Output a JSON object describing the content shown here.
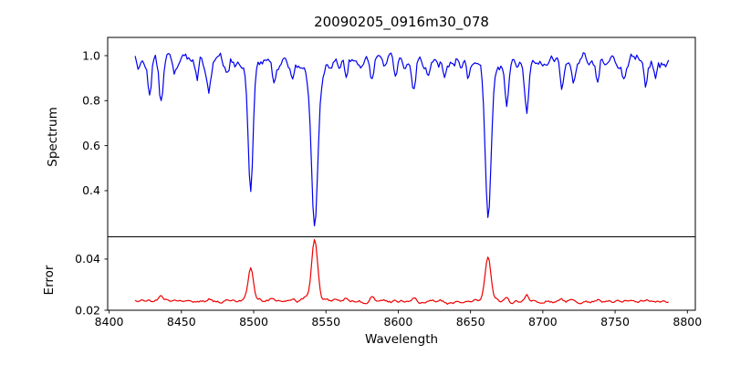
{
  "window": {
    "background": "#ffffff"
  },
  "chart_data": {
    "type": "line",
    "title": "20090205_0916m30_078",
    "xlabel": "Wavelength",
    "grid": false,
    "legend": "none",
    "x_data_range": [
      8418,
      8787
    ],
    "x_step": 1.0,
    "xlim": [
      8399,
      8805.5
    ],
    "xticks": [
      8400,
      8450,
      8500,
      8550,
      8600,
      8650,
      8700,
      8750,
      8800
    ],
    "xtick_labels": [
      "8400",
      "8450",
      "8500",
      "8550",
      "8600",
      "8650",
      "8700",
      "8750",
      "8800"
    ],
    "noise_seed": 20090205,
    "panels": [
      {
        "name": "spectrum",
        "ylabel": "Spectrum",
        "line_color": "#0000ee",
        "ylim": [
          0.195,
          1.081
        ],
        "yticks": [
          0.4,
          0.6,
          0.8,
          1.0
        ],
        "ytick_labels": [
          "0.4",
          "0.6",
          "0.8",
          "1.0"
        ],
        "continuum": 0.975,
        "noise_amplitude": 0.05,
        "absorption_lines": [
          {
            "center": 8428.0,
            "depth": 0.15,
            "sigma": 1.2
          },
          {
            "center": 8436.0,
            "depth": 0.21,
            "sigma": 1.3
          },
          {
            "center": 8445.0,
            "depth": 0.06,
            "sigma": 1.0
          },
          {
            "center": 8461.0,
            "depth": 0.07,
            "sigma": 1.0
          },
          {
            "center": 8469.0,
            "depth": 0.15,
            "sigma": 1.3
          },
          {
            "center": 8482.0,
            "depth": 0.06,
            "sigma": 1.0
          },
          {
            "center": 8498.0,
            "depth": 0.52,
            "sigma": 1.7
          },
          {
            "center": 8498.0,
            "depth": 0.045,
            "sigma": 6.0
          },
          {
            "center": 8514.0,
            "depth": 0.12,
            "sigma": 1.2
          },
          {
            "center": 8527.0,
            "depth": 0.07,
            "sigma": 1.0
          },
          {
            "center": 8542.1,
            "depth": 0.68,
            "sigma": 2.1
          },
          {
            "center": 8542.1,
            "depth": 0.06,
            "sigma": 8.0
          },
          {
            "center": 8564.0,
            "depth": 0.1,
            "sigma": 1.1
          },
          {
            "center": 8582.0,
            "depth": 0.12,
            "sigma": 1.2
          },
          {
            "center": 8598.0,
            "depth": 0.05,
            "sigma": 1.0
          },
          {
            "center": 8611.0,
            "depth": 0.11,
            "sigma": 1.2
          },
          {
            "center": 8621.0,
            "depth": 0.06,
            "sigma": 1.0
          },
          {
            "center": 8632.0,
            "depth": 0.05,
            "sigma": 1.0
          },
          {
            "center": 8648.0,
            "depth": 0.06,
            "sigma": 1.0
          },
          {
            "center": 8662.1,
            "depth": 0.62,
            "sigma": 2.0
          },
          {
            "center": 8662.1,
            "depth": 0.05,
            "sigma": 7.0
          },
          {
            "center": 8675.0,
            "depth": 0.16,
            "sigma": 1.2
          },
          {
            "center": 8689.0,
            "depth": 0.23,
            "sigma": 1.3
          },
          {
            "center": 8713.0,
            "depth": 0.12,
            "sigma": 1.2
          },
          {
            "center": 8721.0,
            "depth": 0.07,
            "sigma": 1.0
          },
          {
            "center": 8738.0,
            "depth": 0.08,
            "sigma": 1.0
          },
          {
            "center": 8756.0,
            "depth": 0.09,
            "sigma": 1.0
          },
          {
            "center": 8771.0,
            "depth": 0.1,
            "sigma": 1.0
          },
          {
            "center": 8778.0,
            "depth": 0.08,
            "sigma": 1.0
          }
        ]
      },
      {
        "name": "error",
        "ylabel": "Error",
        "line_color": "#ee0000",
        "ylim": [
          0.02,
          0.0487
        ],
        "yticks": [
          0.02,
          0.04
        ],
        "ytick_labels": [
          "0.02",
          "0.04"
        ],
        "baseline": 0.0235,
        "noise_amplitude": 0.0012,
        "peaks": [
          {
            "center": 8428.0,
            "amplitude": 0.0013,
            "sigma": 1.4
          },
          {
            "center": 8436.0,
            "amplitude": 0.0024,
            "sigma": 1.4
          },
          {
            "center": 8469.0,
            "amplitude": 0.0011,
            "sigma": 1.4
          },
          {
            "center": 8498.0,
            "amplitude": 0.0122,
            "sigma": 1.8
          },
          {
            "center": 8498.0,
            "amplitude": 0.001,
            "sigma": 5.0
          },
          {
            "center": 8514.0,
            "amplitude": 0.001,
            "sigma": 1.2
          },
          {
            "center": 8527.0,
            "amplitude": 0.0008,
            "sigma": 1.2
          },
          {
            "center": 8542.1,
            "amplitude": 0.022,
            "sigma": 2.0
          },
          {
            "center": 8542.1,
            "amplitude": 0.002,
            "sigma": 6.0
          },
          {
            "center": 8564.0,
            "amplitude": 0.0008,
            "sigma": 1.2
          },
          {
            "center": 8582.0,
            "amplitude": 0.0013,
            "sigma": 1.4
          },
          {
            "center": 8611.0,
            "amplitude": 0.0008,
            "sigma": 1.2
          },
          {
            "center": 8662.1,
            "amplitude": 0.0155,
            "sigma": 1.9
          },
          {
            "center": 8662.1,
            "amplitude": 0.0015,
            "sigma": 5.0
          },
          {
            "center": 8675.0,
            "amplitude": 0.0013,
            "sigma": 1.3
          },
          {
            "center": 8689.0,
            "amplitude": 0.0028,
            "sigma": 1.4
          },
          {
            "center": 8713.0,
            "amplitude": 0.0008,
            "sigma": 1.2
          }
        ]
      }
    ]
  }
}
